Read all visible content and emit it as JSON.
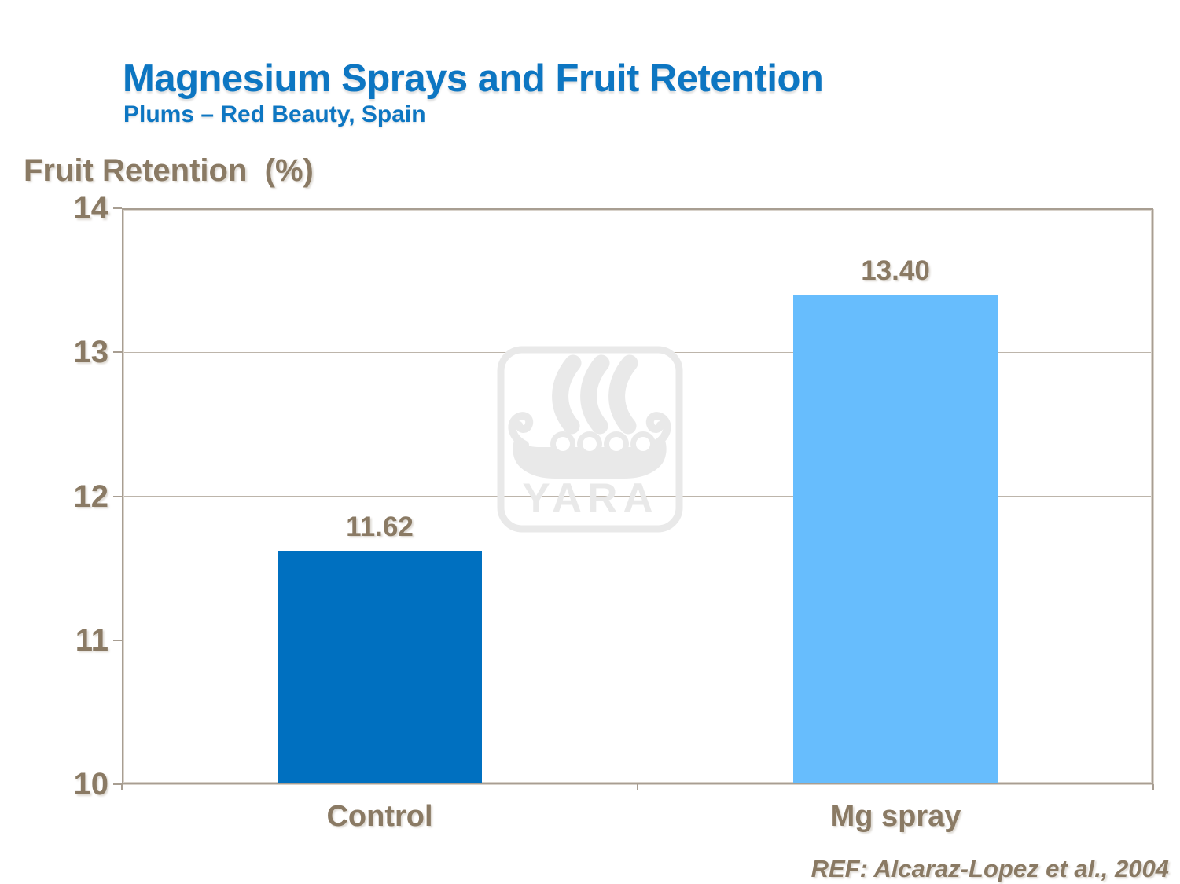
{
  "header": {
    "title": "Magnesium Sprays and Fruit Retention",
    "subtitle": "Plums – Red Beauty, Spain",
    "title_color": "#0d76c2"
  },
  "footer": {
    "reference": "REF: Alcaraz-Lopez et al., 2004"
  },
  "watermark": {
    "icon": "yara-viking-ship-logo",
    "text": "YARA",
    "color": "#e9e9e9"
  },
  "chart_data": {
    "type": "bar",
    "title": "Magnesium Sprays and Fruit Retention",
    "subtitle": "Plums – Red Beauty, Spain",
    "xlabel": "",
    "ylabel": "Fruit Retention  (%)",
    "categories": [
      "Control",
      "Mg spray"
    ],
    "values": [
      11.62,
      13.4
    ],
    "value_labels": [
      "11.62",
      "13.40"
    ],
    "bar_colors": [
      "#0070c0",
      "#67bdfd"
    ],
    "ylim": [
      10,
      14
    ],
    "yticks": [
      10,
      11,
      12,
      13,
      14
    ],
    "grid": true,
    "legend": "none",
    "gridline_color": "#bdb5ab",
    "axis_color": "#a89e92",
    "text_color": "#8a7a64"
  }
}
